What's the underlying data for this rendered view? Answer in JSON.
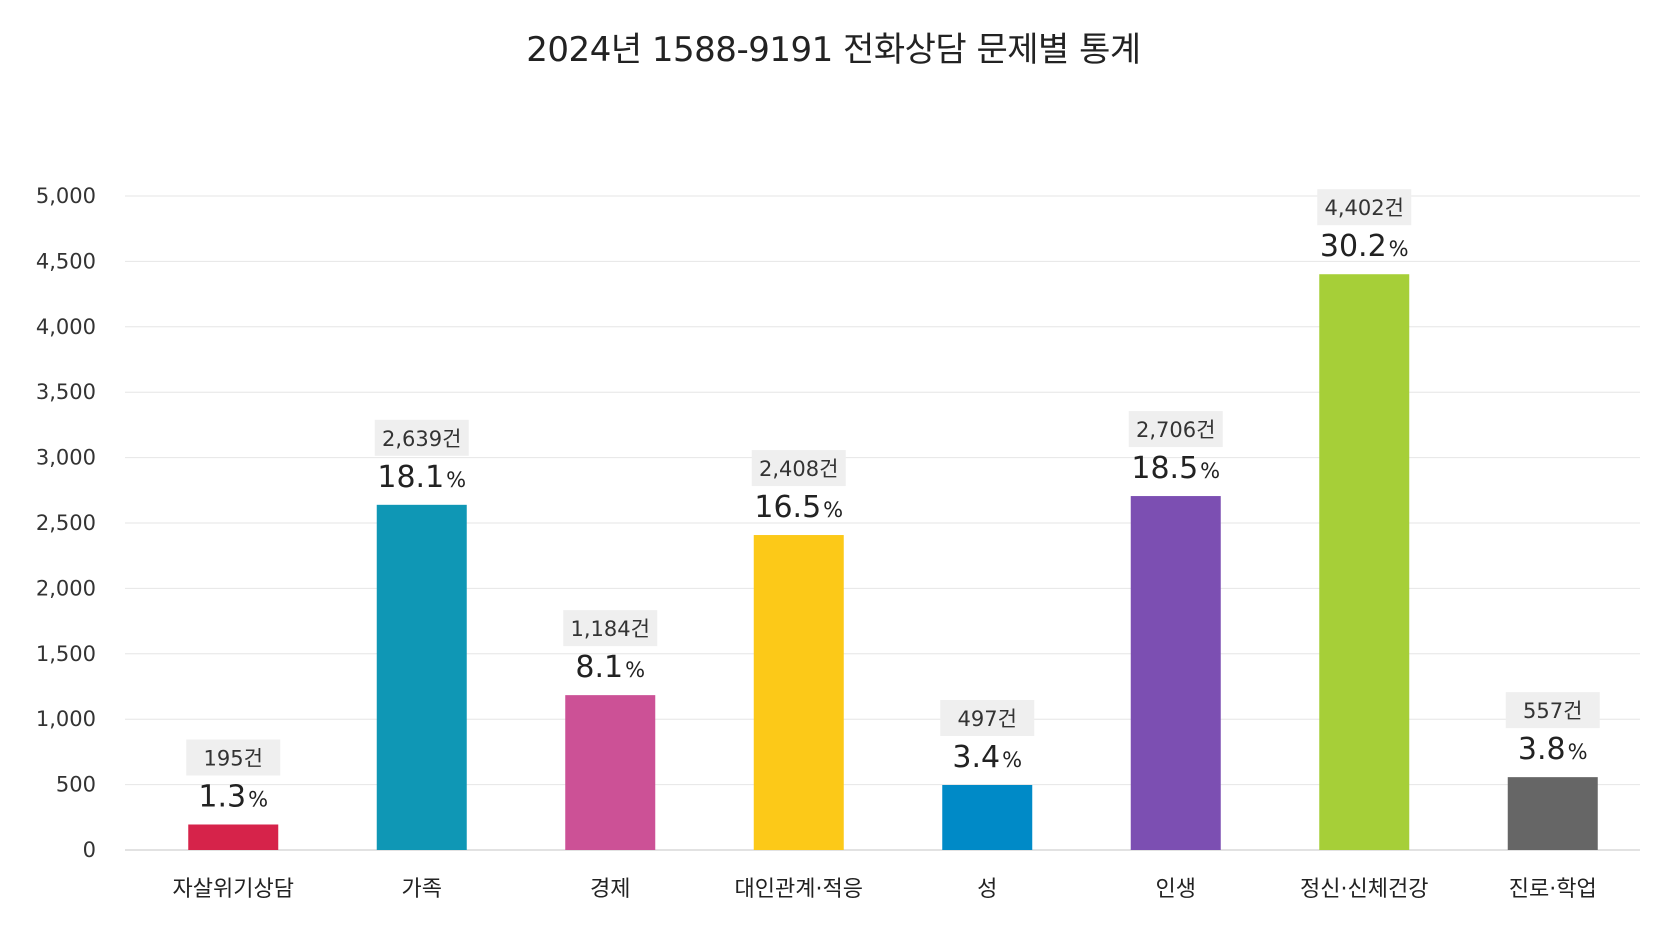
{
  "chart_data": {
    "type": "bar",
    "title": "2024년 1588-9191 전화상담 문제별 통계",
    "xlabel": "",
    "ylabel": "",
    "ylim": [
      0,
      5000
    ],
    "yticks": [
      0,
      500,
      1000,
      1500,
      2000,
      2500,
      3000,
      3500,
      4000,
      4500,
      5000
    ],
    "ytick_labels": [
      "0",
      "500",
      "1,000",
      "1,500",
      "2,000",
      "2,500",
      "3,000",
      "3,500",
      "4,000",
      "4,500",
      "5,000"
    ],
    "grid": true,
    "legend": "none",
    "categories": [
      "자살위기상담",
      "가족",
      "경제",
      "대인관계·적응",
      "성",
      "인생",
      "정신·신체건강",
      "진로·학업"
    ],
    "values": [
      195,
      2639,
      1184,
      2408,
      497,
      2706,
      4402,
      557
    ],
    "count_labels": [
      "195건",
      "2,639건",
      "1,184건",
      "2,408건",
      "497건",
      "2,706건",
      "4,402건",
      "557건"
    ],
    "percent_values": [
      "1.3",
      "18.1",
      "8.1",
      "16.5",
      "3.4",
      "18.5",
      "30.2",
      "3.8"
    ],
    "percent_unit": "%",
    "colors": [
      "#d6234a",
      "#0f97b5",
      "#cc5196",
      "#fcc918",
      "#008ac7",
      "#7c4fb2",
      "#a6cf38",
      "#666666"
    ]
  }
}
